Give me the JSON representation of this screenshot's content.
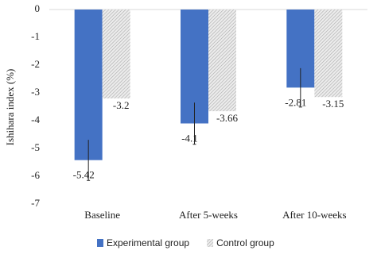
{
  "chart_data": {
    "type": "bar",
    "y_label": "Ishihara index (%)",
    "categories": [
      "Baseline",
      "After 5-weeks",
      "After 10-weeks"
    ],
    "series": [
      {
        "name": "Experimental group",
        "color": "#4472c4",
        "values": [
          -5.42,
          -4.1,
          -2.81
        ],
        "errors": [
          0.73,
          0.75,
          0.7
        ]
      },
      {
        "name": "Control group",
        "color": "#c8c8c8",
        "hatch": true,
        "values": [
          -3.2,
          -3.66,
          -3.15
        ]
      }
    ],
    "ylim": [
      -7,
      0
    ],
    "yticks": [
      0,
      -1,
      -2,
      -3,
      -4,
      -5,
      -6,
      -7
    ],
    "legend": "bottom"
  }
}
